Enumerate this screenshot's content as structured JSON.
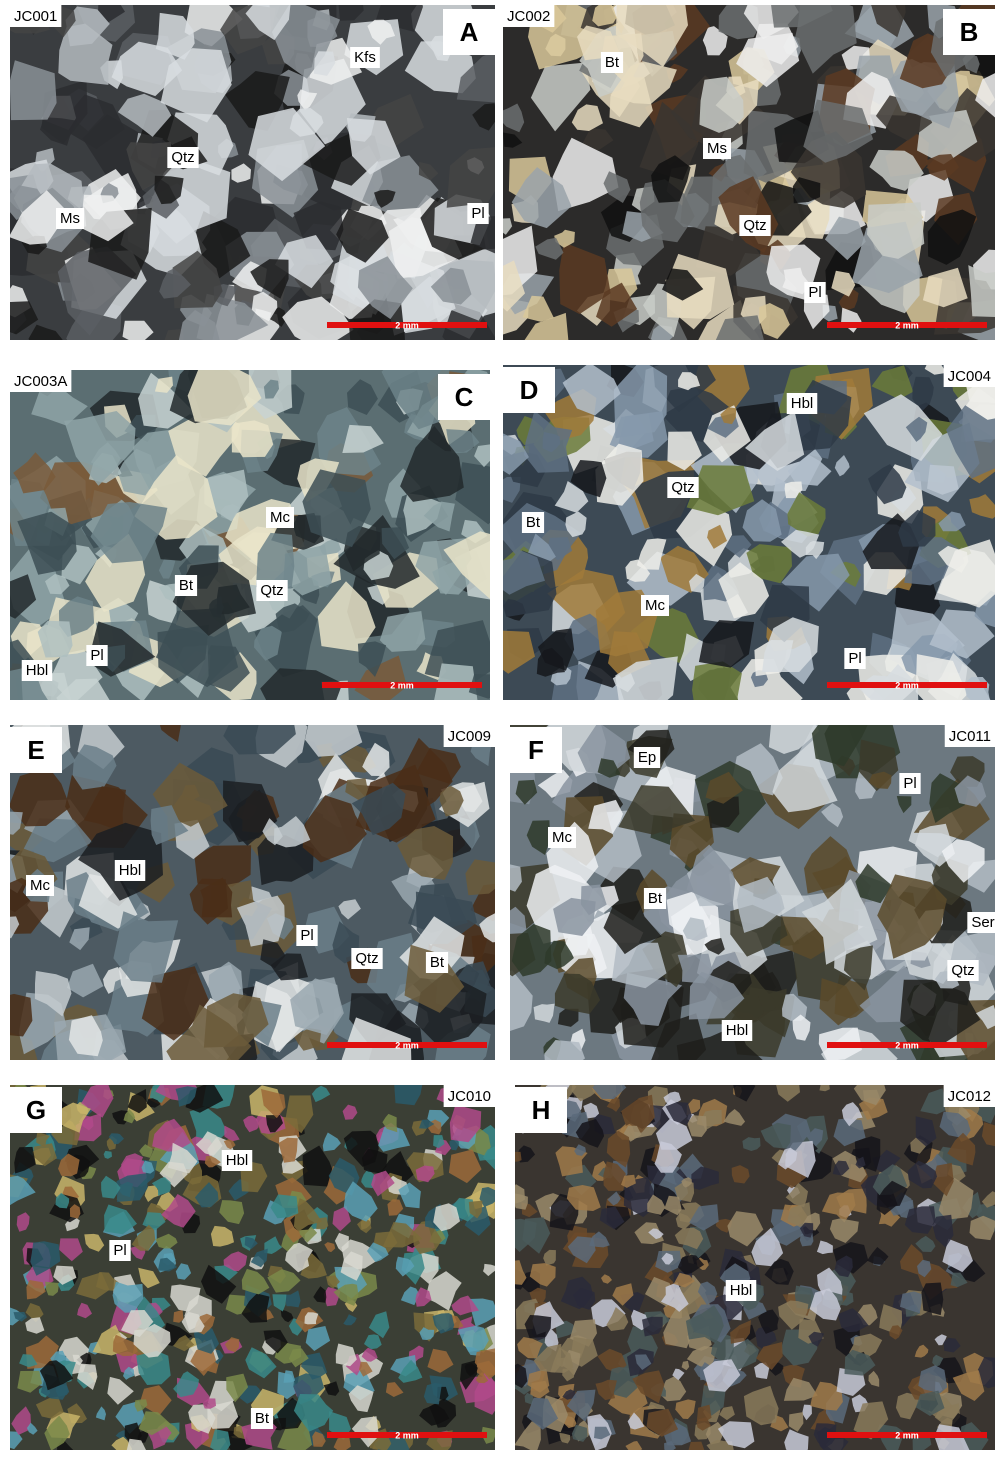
{
  "panels": [
    {
      "letter": "A",
      "sample": "JC001",
      "labels": [
        "Kfs",
        "Qtz",
        "Ms",
        "Pl"
      ],
      "scale_bar": "2 mm"
    },
    {
      "letter": "B",
      "sample": "JC002",
      "labels": [
        "Bt",
        "Ms",
        "Qtz",
        "Pl"
      ],
      "scale_bar": "2 mm"
    },
    {
      "letter": "C",
      "sample": "JC003A",
      "labels": [
        "Mc",
        "Bt",
        "Qtz",
        "Pl",
        "Hbl"
      ],
      "scale_bar": "2 mm"
    },
    {
      "letter": "D",
      "sample": "JC004",
      "labels": [
        "Hbl",
        "Qtz",
        "Bt",
        "Mc",
        "Pl"
      ],
      "scale_bar": "2 mm"
    },
    {
      "letter": "E",
      "sample": "JC009",
      "labels": [
        "Hbl",
        "Mc",
        "Pl",
        "Qtz",
        "Bt"
      ],
      "scale_bar": "2 mm"
    },
    {
      "letter": "F",
      "sample": "JC011",
      "labels": [
        "Ep",
        "Pl",
        "Mc",
        "Bt",
        "Ser",
        "Qtz",
        "Hbl"
      ],
      "scale_bar": "2 mm"
    },
    {
      "letter": "G",
      "sample": "JC010",
      "labels": [
        "Hbl",
        "Pl",
        "Bt"
      ],
      "scale_bar": "2 mm"
    },
    {
      "letter": "H",
      "sample": "JC012",
      "labels": [
        "Hbl"
      ],
      "scale_bar": "2 mm"
    }
  ]
}
